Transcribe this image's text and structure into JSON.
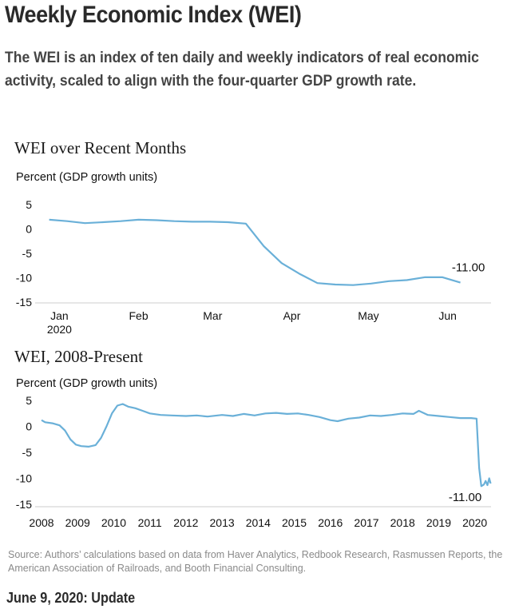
{
  "header": {
    "title": "Weekly Economic Index (WEI)",
    "subtitle": "The WEI is an index of ten daily and weekly indicators of real economic activity, scaled to align with the four-quarter GDP growth rate."
  },
  "footer": {
    "source": "Source: Authors’ calculations based on data from Haver Analytics, Redbook Research, Rasmussen Reports, the American Association of Railroads, and Booth Financial Consulting.",
    "update": "June 9, 2020: Update"
  },
  "colors": {
    "line": "#6ab0d8",
    "axis": "#cccccc"
  },
  "chart_data": [
    {
      "type": "line",
      "title": "WEI over Recent Months",
      "ylabel": "Percent (GDP growth units)",
      "ylim": [
        -15,
        5
      ],
      "yticks": [
        "5",
        "0",
        "-5",
        "-10",
        "-15"
      ],
      "xticks": [
        {
          "label": "Jan",
          "sub": "2020",
          "date": "2020-01-01"
        },
        {
          "label": "Feb",
          "sub": "",
          "date": "2020-02-01"
        },
        {
          "label": "Mar",
          "sub": "",
          "date": "2020-03-01"
        },
        {
          "label": "Apr",
          "sub": "",
          "date": "2020-04-01"
        },
        {
          "label": "May",
          "sub": "",
          "date": "2020-05-01"
        },
        {
          "label": "Jun",
          "sub": "",
          "date": "2020-06-01"
        }
      ],
      "end_label": "-11.00",
      "series": [
        {
          "x": [
            "2019-12-28",
            "2020-01-04",
            "2020-01-11",
            "2020-01-18",
            "2020-01-25",
            "2020-02-01",
            "2020-02-08",
            "2020-02-15",
            "2020-02-22",
            "2020-02-29",
            "2020-03-07",
            "2020-03-14",
            "2020-03-21",
            "2020-03-28",
            "2020-04-04",
            "2020-04-11",
            "2020-04-18",
            "2020-04-25",
            "2020-05-02",
            "2020-05-09",
            "2020-05-16",
            "2020-05-23",
            "2020-05-30",
            "2020-06-06"
          ],
          "y": [
            1.9,
            1.6,
            1.2,
            1.4,
            1.6,
            1.9,
            1.8,
            1.6,
            1.5,
            1.5,
            1.4,
            1.1,
            -3.5,
            -7.0,
            -9.2,
            -11.1,
            -11.4,
            -11.5,
            -11.2,
            -10.7,
            -10.5,
            -9.9,
            -9.9,
            -11.0
          ]
        }
      ]
    },
    {
      "type": "line",
      "title": "WEI, 2008-Present",
      "ylabel": "Percent (GDP growth units)",
      "ylim": [
        -15,
        5
      ],
      "yticks": [
        "5",
        "0",
        "-5",
        "-10",
        "-15"
      ],
      "xticks": [
        "2008",
        "2009",
        "2010",
        "2011",
        "2012",
        "2013",
        "2014",
        "2015",
        "2016",
        "2017",
        "2018",
        "2019",
        "2020"
      ],
      "xlim": [
        2008,
        2020.45
      ],
      "end_label": "-11.00",
      "series": [
        {
          "x": [
            2008.0,
            2008.1,
            2008.3,
            2008.5,
            2008.65,
            2008.8,
            2008.95,
            2009.1,
            2009.3,
            2009.5,
            2009.65,
            2009.8,
            2009.95,
            2010.1,
            2010.25,
            2010.4,
            2010.6,
            2010.8,
            2011.0,
            2011.3,
            2011.6,
            2012.0,
            2012.3,
            2012.6,
            2013.0,
            2013.3,
            2013.6,
            2013.9,
            2014.2,
            2014.5,
            2014.8,
            2015.1,
            2015.4,
            2015.7,
            2016.0,
            2016.2,
            2016.5,
            2016.8,
            2017.1,
            2017.4,
            2017.7,
            2018.0,
            2018.3,
            2018.45,
            2018.7,
            2019.0,
            2019.3,
            2019.6,
            2019.9,
            2020.05,
            2020.12,
            2020.18,
            2020.25,
            2020.3,
            2020.35,
            2020.4,
            2020.44
          ],
          "y": [
            1.2,
            0.8,
            0.6,
            0.2,
            -0.8,
            -2.5,
            -3.5,
            -3.8,
            -3.9,
            -3.6,
            -2.2,
            0.0,
            2.5,
            4.0,
            4.3,
            3.8,
            3.5,
            3.0,
            2.5,
            2.2,
            2.1,
            2.0,
            2.1,
            1.9,
            2.2,
            2.0,
            2.4,
            2.1,
            2.5,
            2.6,
            2.4,
            2.5,
            2.2,
            1.8,
            1.2,
            1.0,
            1.5,
            1.7,
            2.1,
            2.0,
            2.2,
            2.5,
            2.4,
            3.0,
            2.2,
            2.0,
            1.8,
            1.6,
            1.6,
            1.5,
            -8.0,
            -11.5,
            -11.2,
            -10.5,
            -11.3,
            -10.0,
            -11.0
          ]
        }
      ]
    }
  ]
}
